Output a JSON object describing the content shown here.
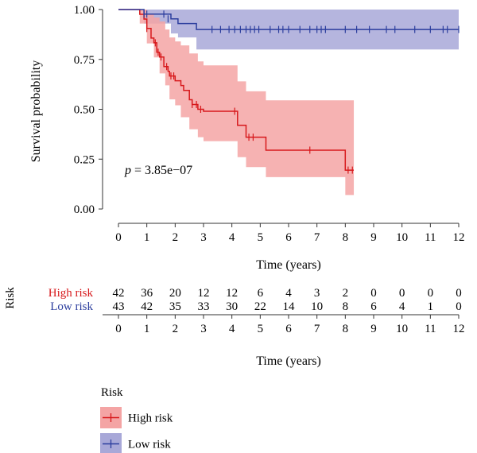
{
  "chart_data": {
    "type": "survival",
    "xlabel": "Time (years)",
    "ylabel": "Survival probability",
    "xlim": [
      0,
      12
    ],
    "ylim": [
      0,
      1
    ],
    "x_ticks": [
      0,
      1,
      2,
      3,
      4,
      5,
      6,
      7,
      8,
      9,
      10,
      11,
      12
    ],
    "y_ticks": [
      "0.00",
      "0.25",
      "0.50",
      "0.75",
      "1.00"
    ],
    "y_tick_values": [
      0,
      0.25,
      0.5,
      0.75,
      1
    ],
    "pvalue_prefix": "p",
    "pvalue_text": " = 3.85e−07",
    "colors": {
      "high": "#d7191c",
      "low": "#2c3e9e",
      "high_fill": "#f4a4a4",
      "low_fill": "#a8a8d8"
    },
    "series": [
      {
        "name": "High risk",
        "color": "#d7191c",
        "fill": "#f4a4a4",
        "steps": [
          [
            0,
            1.0
          ],
          [
            0.75,
            0.976
          ],
          [
            0.9,
            0.952
          ],
          [
            1.0,
            0.905
          ],
          [
            1.15,
            0.857
          ],
          [
            1.25,
            0.833
          ],
          [
            1.35,
            0.786
          ],
          [
            1.45,
            0.762
          ],
          [
            1.6,
            0.714
          ],
          [
            1.75,
            0.69
          ],
          [
            1.8,
            0.667
          ],
          [
            2.0,
            0.643
          ],
          [
            2.2,
            0.619
          ],
          [
            2.3,
            0.595
          ],
          [
            2.5,
            0.548
          ],
          [
            2.6,
            0.524
          ],
          [
            2.8,
            0.5
          ],
          [
            3.0,
            0.49
          ],
          [
            4.1,
            0.49
          ],
          [
            4.2,
            0.42
          ],
          [
            4.5,
            0.36
          ],
          [
            5.2,
            0.295
          ],
          [
            8.0,
            0.195
          ],
          [
            8.3,
            0.195
          ]
        ],
        "upper": [
          [
            0,
            1.0
          ],
          [
            0.75,
            1.0
          ],
          [
            1.0,
            0.98
          ],
          [
            1.25,
            0.96
          ],
          [
            1.45,
            0.94
          ],
          [
            1.65,
            0.9
          ],
          [
            1.8,
            0.86
          ],
          [
            2.0,
            0.84
          ],
          [
            2.2,
            0.82
          ],
          [
            2.5,
            0.78
          ],
          [
            2.8,
            0.74
          ],
          [
            3.0,
            0.72
          ],
          [
            4.1,
            0.72
          ],
          [
            4.2,
            0.64
          ],
          [
            4.5,
            0.59
          ],
          [
            5.2,
            0.545
          ],
          [
            8.0,
            0.545
          ],
          [
            8.3,
            0.545
          ]
        ],
        "lower": [
          [
            0,
            1.0
          ],
          [
            0.75,
            0.93
          ],
          [
            1.0,
            0.83
          ],
          [
            1.25,
            0.76
          ],
          [
            1.45,
            0.68
          ],
          [
            1.65,
            0.62
          ],
          [
            1.8,
            0.55
          ],
          [
            2.0,
            0.52
          ],
          [
            2.2,
            0.46
          ],
          [
            2.5,
            0.4
          ],
          [
            2.8,
            0.36
          ],
          [
            3.0,
            0.34
          ],
          [
            4.1,
            0.34
          ],
          [
            4.2,
            0.26
          ],
          [
            4.5,
            0.21
          ],
          [
            5.2,
            0.16
          ],
          [
            8.0,
            0.07
          ],
          [
            8.3,
            0.07
          ]
        ],
        "censors": [
          [
            1.0,
            0.905
          ],
          [
            1.3,
            0.833
          ],
          [
            1.4,
            0.786
          ],
          [
            1.5,
            0.762
          ],
          [
            1.7,
            0.714
          ],
          [
            1.85,
            0.667
          ],
          [
            1.95,
            0.667
          ],
          [
            2.6,
            0.524
          ],
          [
            2.75,
            0.524
          ],
          [
            2.9,
            0.5
          ],
          [
            4.1,
            0.49
          ],
          [
            4.6,
            0.36
          ],
          [
            4.75,
            0.36
          ],
          [
            6.75,
            0.295
          ],
          [
            8.1,
            0.195
          ],
          [
            8.25,
            0.195
          ]
        ]
      },
      {
        "name": "Low risk",
        "color": "#2c3e9e",
        "fill": "#a8a8d8",
        "steps": [
          [
            0,
            1.0
          ],
          [
            0.9,
            0.977
          ],
          [
            1.85,
            0.953
          ],
          [
            2.1,
            0.93
          ],
          [
            2.75,
            0.9
          ],
          [
            12.0,
            0.9
          ]
        ],
        "upper": [
          [
            0,
            1.0
          ],
          [
            12.0,
            1.0
          ]
        ],
        "lower": [
          [
            0,
            1.0
          ],
          [
            0.9,
            0.93
          ],
          [
            1.85,
            0.88
          ],
          [
            2.1,
            0.86
          ],
          [
            2.75,
            0.8
          ],
          [
            12.0,
            0.8
          ]
        ],
        "censors": [
          [
            0.9,
            0.977
          ],
          [
            1.0,
            0.977
          ],
          [
            1.6,
            0.977
          ],
          [
            1.75,
            0.953
          ],
          [
            3.3,
            0.9
          ],
          [
            3.6,
            0.9
          ],
          [
            3.9,
            0.9
          ],
          [
            4.1,
            0.9
          ],
          [
            4.3,
            0.9
          ],
          [
            4.5,
            0.9
          ],
          [
            4.65,
            0.9
          ],
          [
            4.8,
            0.9
          ],
          [
            4.95,
            0.9
          ],
          [
            5.35,
            0.9
          ],
          [
            5.65,
            0.9
          ],
          [
            5.8,
            0.9
          ],
          [
            6.0,
            0.9
          ],
          [
            6.4,
            0.9
          ],
          [
            6.75,
            0.9
          ],
          [
            7.0,
            0.9
          ],
          [
            7.15,
            0.9
          ],
          [
            7.3,
            0.9
          ],
          [
            8.0,
            0.9
          ],
          [
            8.4,
            0.9
          ],
          [
            8.85,
            0.9
          ],
          [
            9.45,
            0.9
          ],
          [
            9.75,
            0.9
          ],
          [
            10.45,
            0.9
          ],
          [
            11.0,
            0.9
          ],
          [
            11.45,
            0.9
          ],
          [
            11.6,
            0.9
          ],
          [
            12.0,
            0.9
          ]
        ]
      }
    ],
    "risk_table": {
      "title": "Risk",
      "xlabel": "Time (years)",
      "rows": [
        {
          "name": "High risk",
          "color": "#d7191c",
          "values": [
            42,
            36,
            20,
            12,
            12,
            6,
            4,
            3,
            2,
            0,
            0,
            0,
            0
          ]
        },
        {
          "name": "Low risk",
          "color": "#2c3e9e",
          "values": [
            43,
            42,
            35,
            33,
            30,
            22,
            14,
            10,
            8,
            6,
            4,
            1,
            0
          ]
        }
      ]
    },
    "legend": {
      "title": "Risk",
      "placement": "bottom-left",
      "entries": [
        "High risk",
        "Low risk"
      ]
    }
  }
}
